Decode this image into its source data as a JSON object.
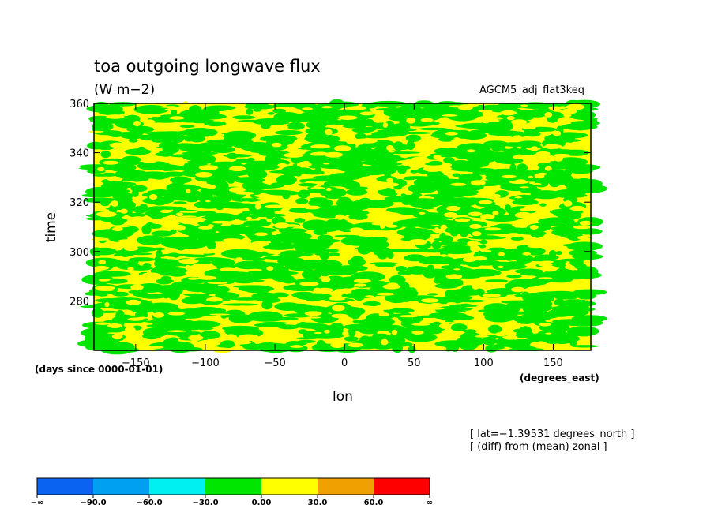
{
  "chart_data": {
    "type": "heatmap",
    "title": "toa outgoing longwave flux",
    "units": "(W m−2)",
    "dataset": "AGCM5_adj_flat3keq",
    "xlabel": "lon",
    "xunits": "(degrees_east)",
    "ylabel": "time",
    "yunits": "(days since 0000-01-01)",
    "xlim": [
      -180,
      177
    ],
    "ylim": [
      260,
      360
    ],
    "x_ticks": [
      -150,
      -100,
      -50,
      0,
      50,
      100,
      150
    ],
    "x_tick_labels": [
      "−150",
      "−100",
      "−50",
      "0",
      "50",
      "100",
      "150"
    ],
    "y_ticks": [
      280,
      300,
      320,
      340,
      360
    ],
    "y_tick_labels": [
      "280",
      "300",
      "320",
      "340",
      "360"
    ],
    "notes": [
      "[ lat=−1.39531 degrees_north ]",
      "[ (diff) from (mean) zonal ]"
    ],
    "colorbar": {
      "levels": [
        "−∞",
        "−90.0",
        "−60.0",
        "−30.0",
        "0.00",
        "30.0",
        "60.0",
        "∞"
      ],
      "colors": [
        "#0a64f0",
        "#00a0f0",
        "#00f0f0",
        "#00e600",
        "#ffff00",
        "#f0a000",
        "#ff0000"
      ]
    },
    "field_colors": {
      "below_zero": "#00e600",
      "above_zero": "#ffff00"
    },
    "dominant_bins": [
      "-30.0 to 0.00",
      "0.00 to 30.0"
    ],
    "grid": false
  }
}
